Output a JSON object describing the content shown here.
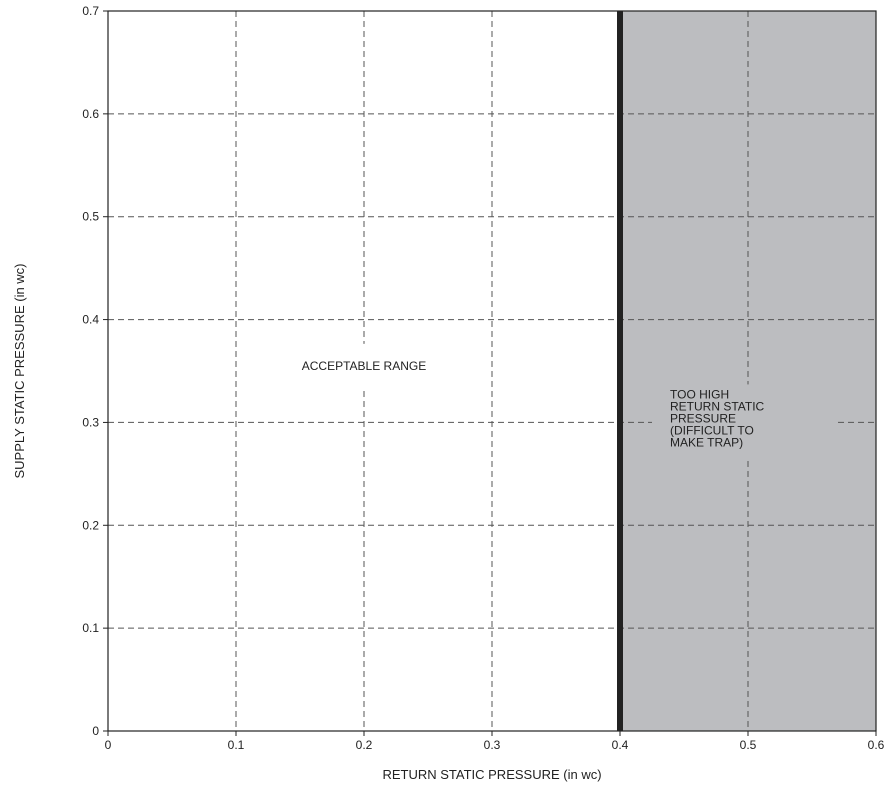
{
  "chart_data": {
    "type": "area",
    "title": "",
    "xlabel": "RETURN STATIC PRESSURE (in wc)",
    "ylabel": "SUPPLY STATIC PRESSURE (in wc)",
    "xlim": [
      0,
      0.6
    ],
    "ylim": [
      0,
      0.7
    ],
    "x_ticks": [
      0,
      0.1,
      0.2,
      0.3,
      0.4,
      0.5,
      0.6
    ],
    "y_ticks": [
      0,
      0.1,
      0.2,
      0.3,
      0.4,
      0.5,
      0.6,
      0.7
    ],
    "x_tick_labels": [
      "0",
      "0.1",
      "0.2",
      "0.3",
      "0.4",
      "0.5",
      "0.6"
    ],
    "y_tick_labels": [
      "0",
      "0.1",
      "0.2",
      "0.3",
      "0.4",
      "0.5",
      "0.6",
      "0.7"
    ],
    "grid": true,
    "grid_style": "dashed",
    "boundary_line": {
      "x": 0.4,
      "color": "#222222"
    },
    "regions": [
      {
        "label": "ACCEPTABLE RANGE",
        "x_range": [
          0,
          0.4
        ],
        "y_range": [
          0,
          0.7
        ],
        "color": "#ffffff"
      },
      {
        "label_lines": [
          "TOO HIGH",
          "RETURN STATIC",
          "PRESSURE",
          "(DIFFICULT TO",
          "MAKE TRAP)"
        ],
        "x_range": [
          0.4,
          0.6
        ],
        "y_range": [
          0,
          0.7
        ],
        "color": "#bcbdc0"
      }
    ],
    "annotation_positions": {
      "acceptable": {
        "x": 0.2,
        "y": 0.355
      },
      "too_high": {
        "x": 0.5,
        "y": 0.3
      }
    }
  }
}
